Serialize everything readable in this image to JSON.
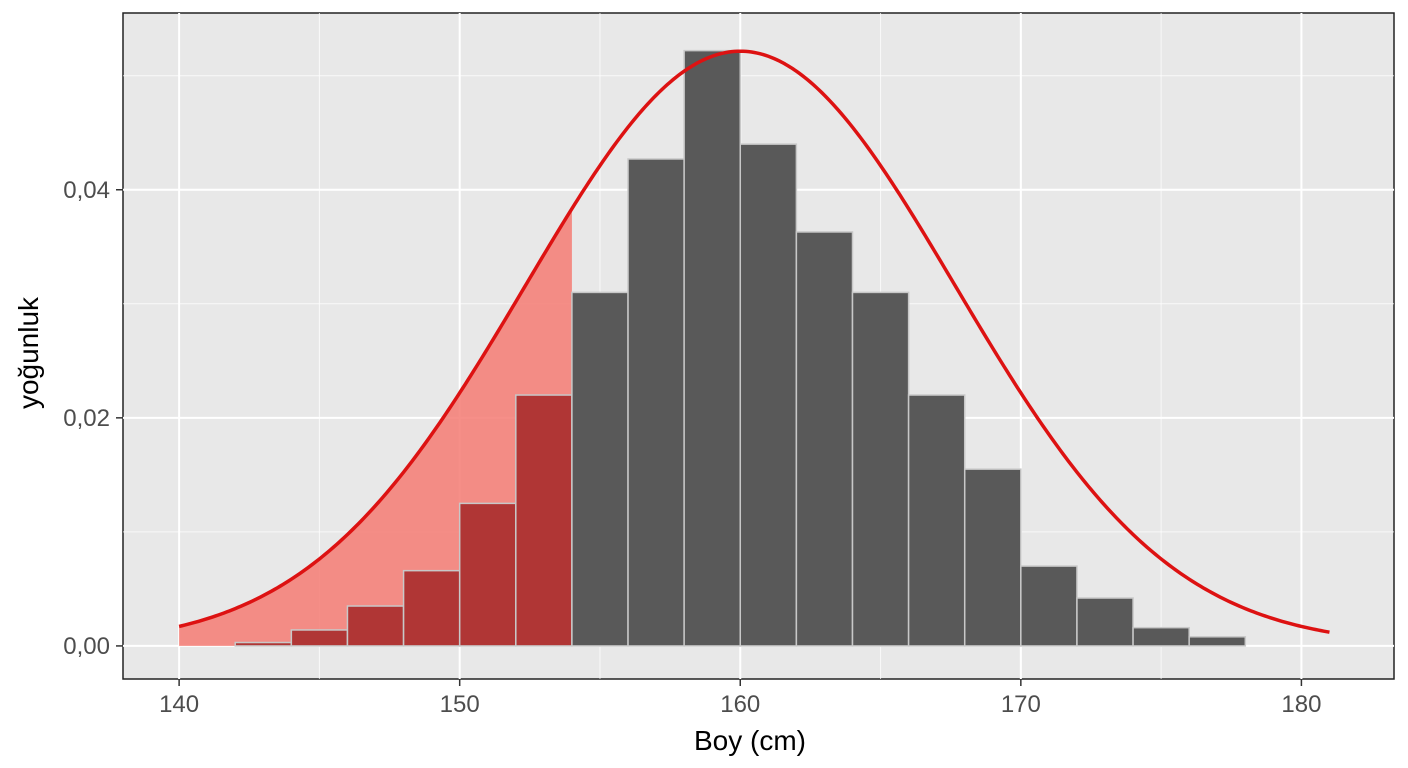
{
  "chart_data": {
    "type": "histogram",
    "title": "",
    "xlabel": "Boy (cm)",
    "ylabel": "yoğunluk",
    "xlim": [
      138,
      183.3
    ],
    "ylim": [
      -0.0029,
      0.0555
    ],
    "x_ticks": [
      {
        "value": 140,
        "label": "140"
      },
      {
        "value": 150,
        "label": "150"
      },
      {
        "value": 160,
        "label": "160"
      },
      {
        "value": 170,
        "label": "170"
      },
      {
        "value": 180,
        "label": "180"
      }
    ],
    "y_ticks": [
      {
        "value": 0.0,
        "label": "0,00"
      },
      {
        "value": 0.02,
        "label": "0,02"
      },
      {
        "value": 0.04,
        "label": "0,04"
      }
    ],
    "bin_width": 2,
    "bins": [
      {
        "start": 142,
        "density": 0.0003,
        "highlight": true
      },
      {
        "start": 144,
        "density": 0.0014,
        "highlight": true
      },
      {
        "start": 146,
        "density": 0.0035,
        "highlight": true
      },
      {
        "start": 148,
        "density": 0.0066,
        "highlight": true
      },
      {
        "start": 150,
        "density": 0.0125,
        "highlight": true
      },
      {
        "start": 152,
        "density": 0.022,
        "highlight": true
      },
      {
        "start": 154,
        "density": 0.031,
        "highlight": false
      },
      {
        "start": 156,
        "density": 0.0427,
        "highlight": false
      },
      {
        "start": 158,
        "density": 0.0522,
        "highlight": false
      },
      {
        "start": 160,
        "density": 0.044,
        "highlight": false
      },
      {
        "start": 162,
        "density": 0.0363,
        "highlight": false
      },
      {
        "start": 164,
        "density": 0.031,
        "highlight": false
      },
      {
        "start": 166,
        "density": 0.022,
        "highlight": false
      },
      {
        "start": 168,
        "density": 0.0155,
        "highlight": false
      },
      {
        "start": 170,
        "density": 0.007,
        "highlight": false
      },
      {
        "start": 172,
        "density": 0.0042,
        "highlight": false
      },
      {
        "start": 174,
        "density": 0.0016,
        "highlight": false
      },
      {
        "start": 176,
        "density": 0.0008,
        "highlight": false
      }
    ],
    "normal_curve": {
      "mean": 160,
      "sd": 7.65,
      "x_range": [
        140,
        181
      ]
    },
    "shaded_region": {
      "from": 140,
      "to": 154
    },
    "colors": {
      "panel": "#e8e8e8",
      "grid": "#ffffff",
      "bar_fill": "#595959",
      "bar_stroke": "#c8c8c8",
      "bar_highlight_fill": "#a82c2c",
      "shade_fill": "#f47b73",
      "curve": "#dd1212"
    }
  }
}
